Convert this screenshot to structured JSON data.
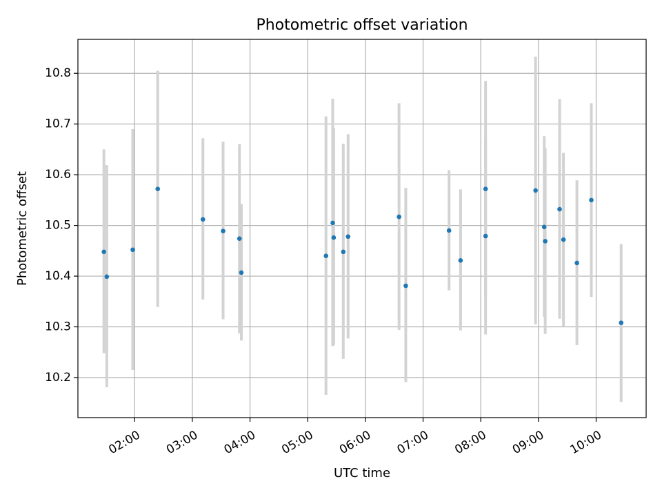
{
  "chart_data": {
    "type": "scatter",
    "title": "Photometric offset variation",
    "xlabel": "UTC time",
    "ylabel": "Photometric offset",
    "x_unit": "time (HH:MM UTC)",
    "xlim": [
      "01:01",
      "10:52"
    ],
    "ylim": [
      10.121,
      10.867
    ],
    "x_ticks": [
      "02:00",
      "03:00",
      "04:00",
      "05:00",
      "06:00",
      "07:00",
      "08:00",
      "09:00",
      "10:00"
    ],
    "y_ticks": [
      10.2,
      10.3,
      10.4,
      10.5,
      10.6,
      10.7,
      10.8
    ],
    "grid": true,
    "errorbar_color": "#d3d3d3",
    "point_color": "#1f77b4",
    "series": [
      {
        "points": [
          {
            "x": "01:28",
            "y": 10.448,
            "ylow": 10.248,
            "yhigh": 10.65
          },
          {
            "x": "01:31",
            "y": 10.399,
            "ylow": 10.181,
            "yhigh": 10.619
          },
          {
            "x": "01:58",
            "y": 10.452,
            "ylow": 10.215,
            "yhigh": 10.69
          },
          {
            "x": "02:24",
            "y": 10.572,
            "ylow": 10.339,
            "yhigh": 10.805
          },
          {
            "x": "03:11",
            "y": 10.512,
            "ylow": 10.354,
            "yhigh": 10.672
          },
          {
            "x": "03:32",
            "y": 10.489,
            "ylow": 10.315,
            "yhigh": 10.665
          },
          {
            "x": "03:49",
            "y": 10.474,
            "ylow": 10.287,
            "yhigh": 10.66
          },
          {
            "x": "03:51",
            "y": 10.407,
            "ylow": 10.273,
            "yhigh": 10.542
          },
          {
            "x": "05:19",
            "y": 10.44,
            "ylow": 10.166,
            "yhigh": 10.715
          },
          {
            "x": "05:26",
            "y": 10.505,
            "ylow": 10.262,
            "yhigh": 10.75
          },
          {
            "x": "05:27",
            "y": 10.476,
            "ylow": 10.264,
            "yhigh": 10.692
          },
          {
            "x": "05:37",
            "y": 10.448,
            "ylow": 10.237,
            "yhigh": 10.661
          },
          {
            "x": "05:42",
            "y": 10.478,
            "ylow": 10.277,
            "yhigh": 10.68
          },
          {
            "x": "06:35",
            "y": 10.517,
            "ylow": 10.294,
            "yhigh": 10.741
          },
          {
            "x": "06:42",
            "y": 10.381,
            "ylow": 10.191,
            "yhigh": 10.574
          },
          {
            "x": "07:27",
            "y": 10.49,
            "ylow": 10.372,
            "yhigh": 10.609
          },
          {
            "x": "07:39",
            "y": 10.431,
            "ylow": 10.293,
            "yhigh": 10.571
          },
          {
            "x": "08:05",
            "y": 10.572,
            "ylow": 10.36,
            "yhigh": 10.785
          },
          {
            "x": "08:05",
            "y": 10.479,
            "ylow": 10.285,
            "yhigh": 10.673
          },
          {
            "x": "08:57",
            "y": 10.569,
            "ylow": 10.305,
            "yhigh": 10.833
          },
          {
            "x": "09:06",
            "y": 10.497,
            "ylow": 10.32,
            "yhigh": 10.676
          },
          {
            "x": "09:07",
            "y": 10.469,
            "ylow": 10.286,
            "yhigh": 10.652
          },
          {
            "x": "09:22",
            "y": 10.532,
            "ylow": 10.316,
            "yhigh": 10.749
          },
          {
            "x": "09:26",
            "y": 10.472,
            "ylow": 10.3,
            "yhigh": 10.643
          },
          {
            "x": "09:40",
            "y": 10.426,
            "ylow": 10.264,
            "yhigh": 10.589
          },
          {
            "x": "09:55",
            "y": 10.55,
            "ylow": 10.359,
            "yhigh": 10.741
          },
          {
            "x": "10:26",
            "y": 10.308,
            "ylow": 10.152,
            "yhigh": 10.463
          }
        ]
      }
    ]
  }
}
